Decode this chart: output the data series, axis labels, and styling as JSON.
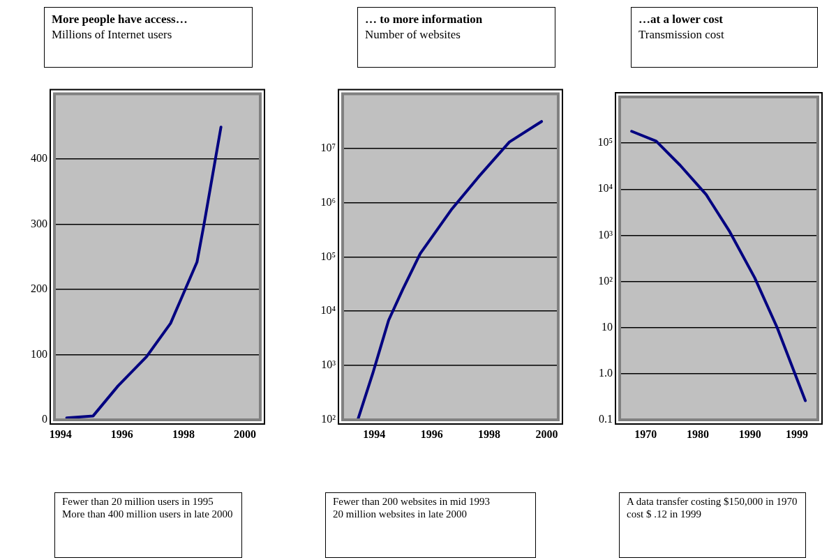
{
  "chart_data": [
    {
      "type": "line",
      "title": "More people have access…",
      "subtitle": "Millions of Internet users",
      "x": [
        1994.2,
        1995.06,
        1995.87,
        1996.8,
        1997.58,
        1998.44,
        1998.68,
        1999.22
      ],
      "series": [
        {
          "color": "#000080",
          "values": [
            3,
            6,
            52,
            97,
            148,
            242,
            303,
            449
          ]
        }
      ],
      "xlim": [
        1993.8,
        2000.5
      ],
      "ylim": [
        0,
        500
      ],
      "xticks": [
        1994,
        1996,
        1998,
        2000
      ],
      "yticks": [
        0,
        100,
        200,
        300,
        400
      ],
      "grid": "y",
      "annotations": [
        "Fewer than 20 million users in 1995",
        "More than 400 million users in late 2000"
      ]
    },
    {
      "type": "line",
      "title": "… to more information",
      "subtitle": "Number of websites",
      "x": [
        1993.44,
        1993.95,
        1994.5,
        1994.99,
        1995.6,
        1996.7,
        1997.66,
        1998.7,
        1999.82
      ],
      "series": [
        {
          "color": "#000080",
          "values": [
            105,
            720,
            6800,
            25000,
            115000,
            760000,
            3100000,
            13000000,
            31000000
          ]
        }
      ],
      "xlim": [
        1992.9,
        2000.4
      ],
      "ylim": [
        100,
        100000000
      ],
      "log": "y",
      "xticks": [
        1994,
        1996,
        1998,
        2000
      ],
      "yticks": [
        {
          "value": 100,
          "label": "10²"
        },
        {
          "value": 1000,
          "label": "10³"
        },
        {
          "value": 10000,
          "label": "10⁴"
        },
        {
          "value": 100000,
          "label": "10⁵"
        },
        {
          "value": 1000000,
          "label": "10⁶"
        },
        {
          "value": 10000000,
          "label": "10⁷"
        }
      ],
      "grid": "y",
      "annotations": [
        "Fewer than 200 websites in mid 1993",
        "20 million websites in late 2000"
      ]
    },
    {
      "type": "line",
      "title": "…at a lower cost",
      "subtitle": "Transmission cost",
      "x": [
        1967.3,
        1972.0,
        1976.6,
        1981.6,
        1986.1,
        1990.9,
        1995.2,
        2000.6
      ],
      "series": [
        {
          "color": "#000080",
          "values": [
            180000,
            110000,
            33000,
            7600,
            1200,
            120,
            10,
            0.26
          ]
        }
      ],
      "xlim": [
        1965,
        2003
      ],
      "ylim": [
        0.1,
        1000000
      ],
      "log": "y",
      "xticks": [
        1970,
        1980,
        1990,
        1999
      ],
      "yticks": [
        {
          "value": 0.1,
          "label": "0.1"
        },
        {
          "value": 1,
          "label": "1.0"
        },
        10,
        {
          "value": 100,
          "label": "10²"
        },
        {
          "value": 1000,
          "label": "10³"
        },
        {
          "value": 10000,
          "label": "10⁴"
        },
        {
          "value": 100000,
          "label": "10⁵"
        }
      ],
      "grid": "y",
      "annotations": [
        "A data transfer costing $150,000 in 1970 cost $ .12 in 1999"
      ]
    }
  ]
}
